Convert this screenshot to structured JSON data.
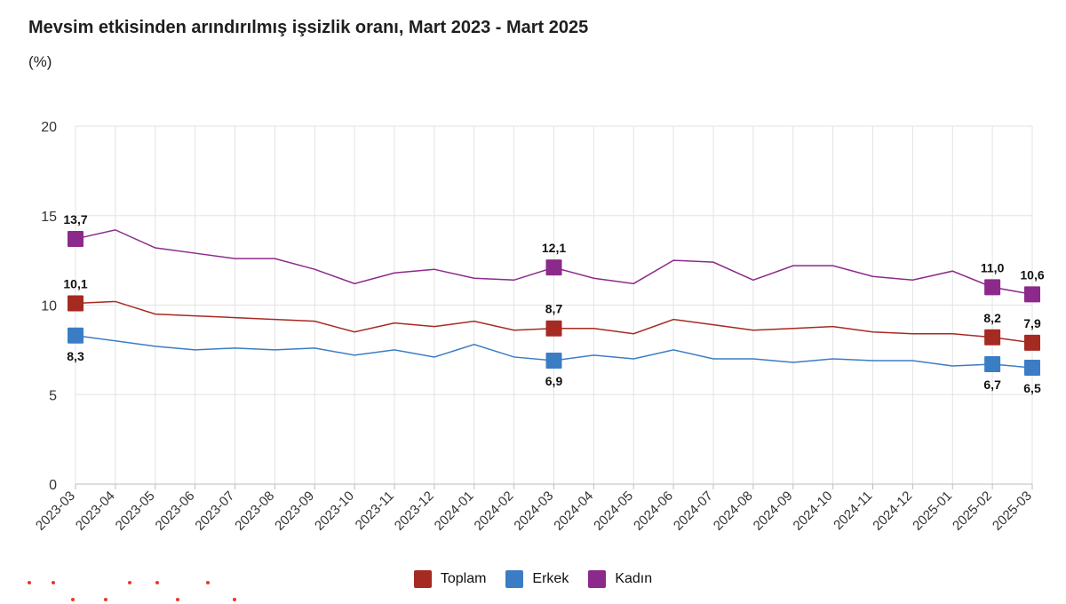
{
  "title": "Mevsim etkisinden arındırılmış işsizlik oranı, Mart 2023 - Mart 2025",
  "unit_label": "(%)",
  "chart_data": {
    "type": "line",
    "categories": [
      "2023-03",
      "2023-04",
      "2023-05",
      "2023-06",
      "2023-07",
      "2023-08",
      "2023-09",
      "2023-10",
      "2023-11",
      "2023-12",
      "2024-01",
      "2024-02",
      "2024-03",
      "2024-04",
      "2024-05",
      "2024-06",
      "2024-07",
      "2024-08",
      "2024-09",
      "2024-10",
      "2024-11",
      "2024-12",
      "2025-01",
      "2025-02",
      "2025-03"
    ],
    "ylim": [
      0,
      20
    ],
    "yticks": [
      0,
      5,
      10,
      15,
      20
    ],
    "grid": true,
    "legend_position": "bottom",
    "series": [
      {
        "name": "Toplam",
        "color": "#a52a22",
        "values": [
          10.1,
          10.2,
          9.5,
          9.4,
          9.3,
          9.2,
          9.1,
          8.5,
          9.0,
          8.8,
          9.1,
          8.6,
          8.7,
          8.7,
          8.4,
          9.2,
          8.9,
          8.6,
          8.7,
          8.8,
          8.5,
          8.4,
          8.4,
          8.2,
          7.9
        ],
        "labels": [
          {
            "index": 0,
            "text": "10,1",
            "pos": "above"
          },
          {
            "index": 12,
            "text": "8,7",
            "pos": "above"
          },
          {
            "index": 23,
            "text": "8,2",
            "pos": "above"
          },
          {
            "index": 24,
            "text": "7,9",
            "pos": "above"
          }
        ]
      },
      {
        "name": "Erkek",
        "color": "#3b7dc4",
        "values": [
          8.3,
          8.0,
          7.7,
          7.5,
          7.6,
          7.5,
          7.6,
          7.2,
          7.5,
          7.1,
          7.8,
          7.1,
          6.9,
          7.2,
          7.0,
          7.5,
          7.0,
          7.0,
          6.8,
          7.0,
          6.9,
          6.9,
          6.6,
          6.7,
          6.5
        ],
        "labels": [
          {
            "index": 0,
            "text": "8,3",
            "pos": "below"
          },
          {
            "index": 12,
            "text": "6,9",
            "pos": "below"
          },
          {
            "index": 23,
            "text": "6,7",
            "pos": "below"
          },
          {
            "index": 24,
            "text": "6,5",
            "pos": "below"
          }
        ]
      },
      {
        "name": "Kadın",
        "color": "#8b2a8b",
        "values": [
          13.7,
          14.2,
          13.2,
          12.9,
          12.6,
          12.6,
          12.0,
          11.2,
          11.8,
          12.0,
          11.5,
          11.4,
          12.1,
          11.5,
          11.2,
          12.5,
          12.4,
          11.4,
          12.2,
          12.2,
          11.6,
          11.4,
          11.9,
          11.0,
          10.6
        ],
        "labels": [
          {
            "index": 0,
            "text": "13,7",
            "pos": "above"
          },
          {
            "index": 12,
            "text": "12,1",
            "pos": "above"
          },
          {
            "index": 23,
            "text": "11,0",
            "pos": "above"
          },
          {
            "index": 24,
            "text": "10,6",
            "pos": "above"
          }
        ]
      }
    ]
  },
  "legend": {
    "items": [
      {
        "label": "Toplam",
        "color": "#a52a22"
      },
      {
        "label": "Erkek",
        "color": "#3b7dc4"
      },
      {
        "label": "Kadın",
        "color": "#8b2a8b"
      }
    ]
  },
  "decoration": {
    "dot_color": "#e8392f"
  }
}
